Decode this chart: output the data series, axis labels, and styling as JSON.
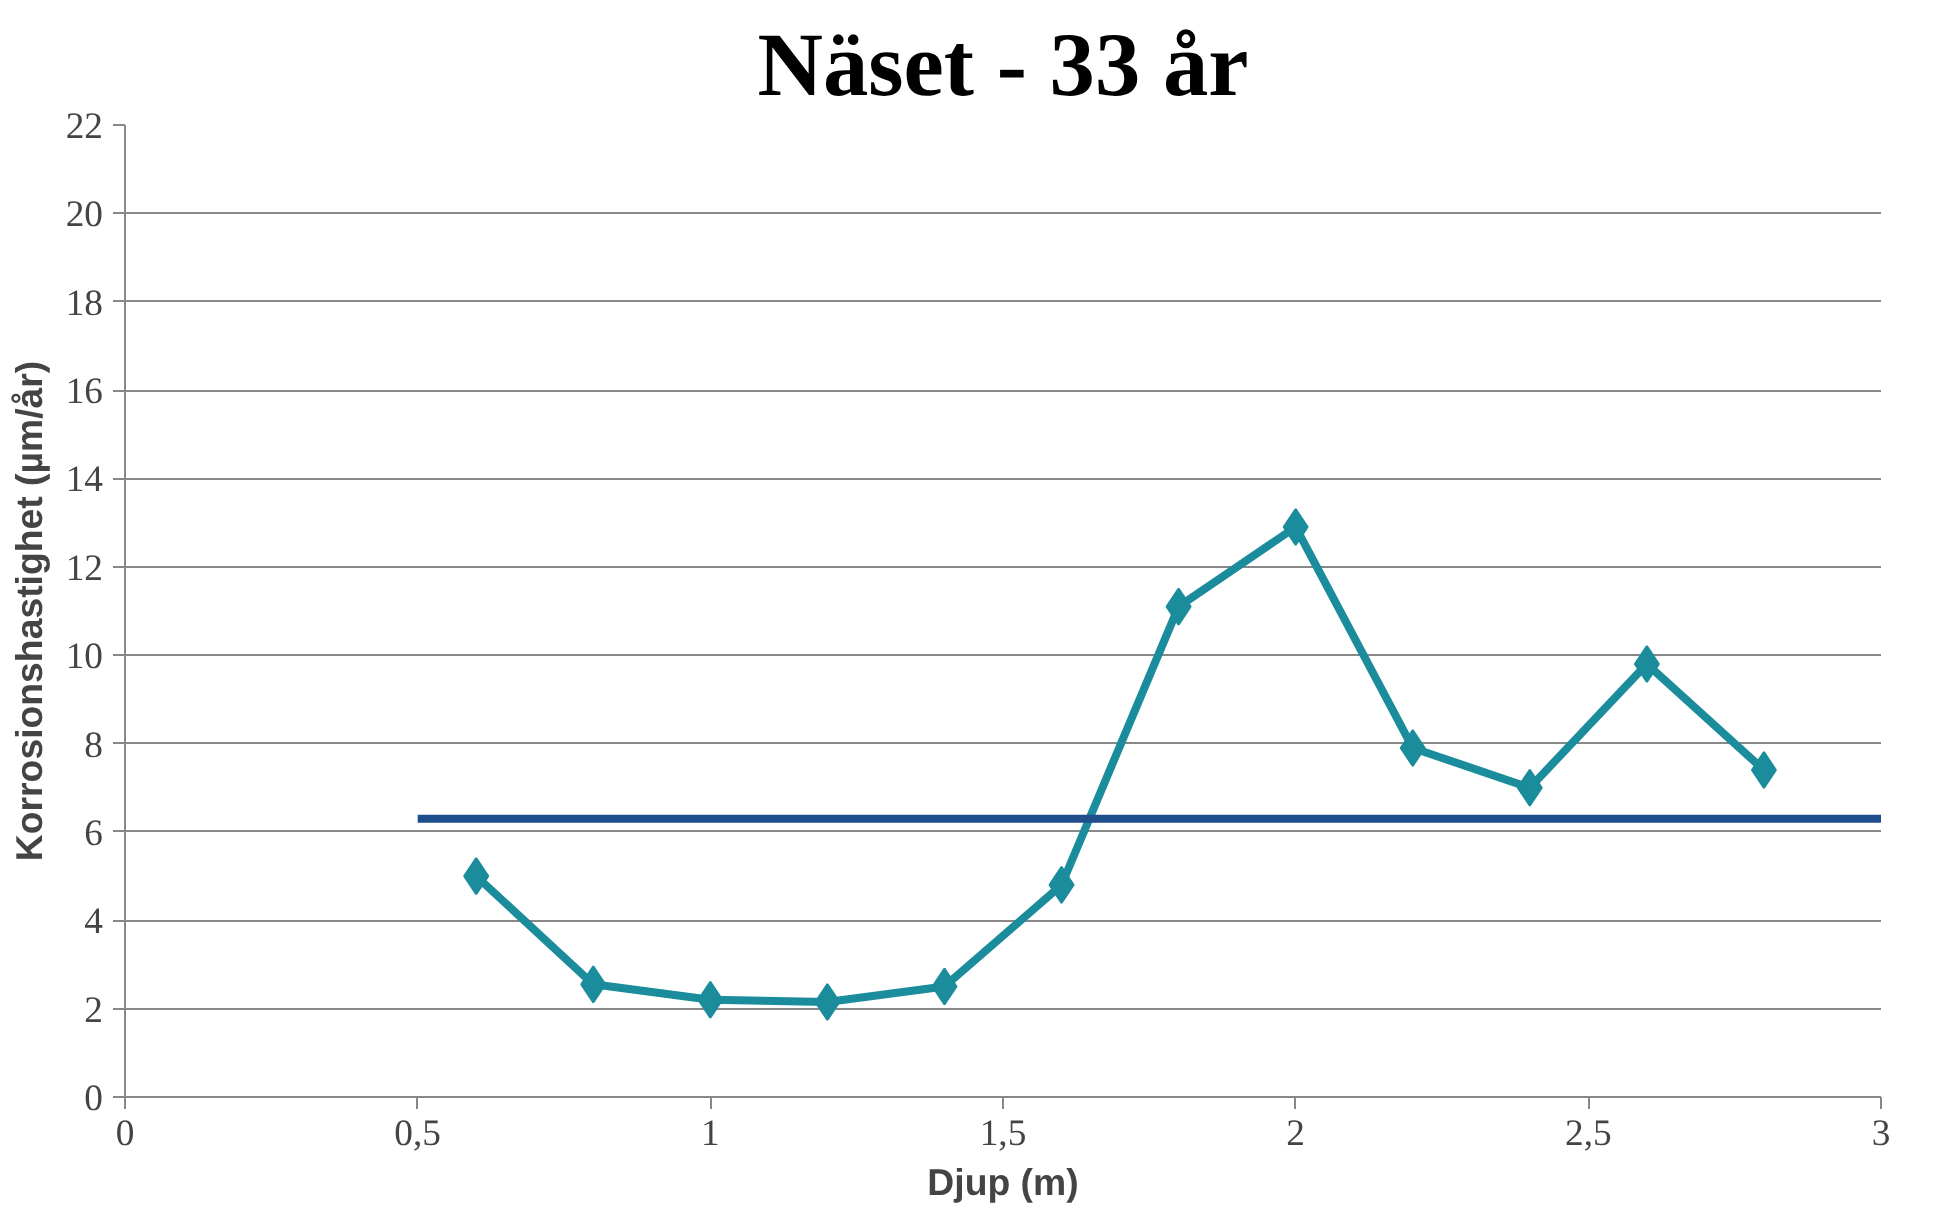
{
  "chart_data": {
    "type": "line",
    "title": "Näset - 33 år",
    "xlabel": "Djup (m)",
    "ylabel": "Korrosionshastighet (µm/år)",
    "x": [
      0.6,
      0.8,
      1.0,
      1.2,
      1.4,
      1.6,
      1.8,
      2.0,
      2.2,
      2.4,
      2.6,
      2.8
    ],
    "series": [
      {
        "color": "#1a8c9c",
        "marker": "diamond",
        "values": [
          5.0,
          2.55,
          2.2,
          2.15,
          2.5,
          4.8,
          11.1,
          12.9,
          7.9,
          7.0,
          9.8,
          7.4
        ]
      },
      {
        "color": "#1f4e8c",
        "marker": "none",
        "x": [
          0.5,
          3.0
        ],
        "values": [
          6.3,
          6.3
        ]
      }
    ],
    "xlim": [
      0,
      3
    ],
    "ylim": [
      0,
      22
    ],
    "xticks": [
      0,
      {
        "value": 0.5,
        "label": "0,5"
      },
      1,
      {
        "value": 1.5,
        "label": "1,5"
      },
      2,
      {
        "value": 2.5,
        "label": "2,5"
      },
      3
    ],
    "yticks": [
      0,
      2,
      4,
      6,
      8,
      10,
      12,
      14,
      16,
      18,
      20,
      22
    ],
    "grid": "y"
  }
}
